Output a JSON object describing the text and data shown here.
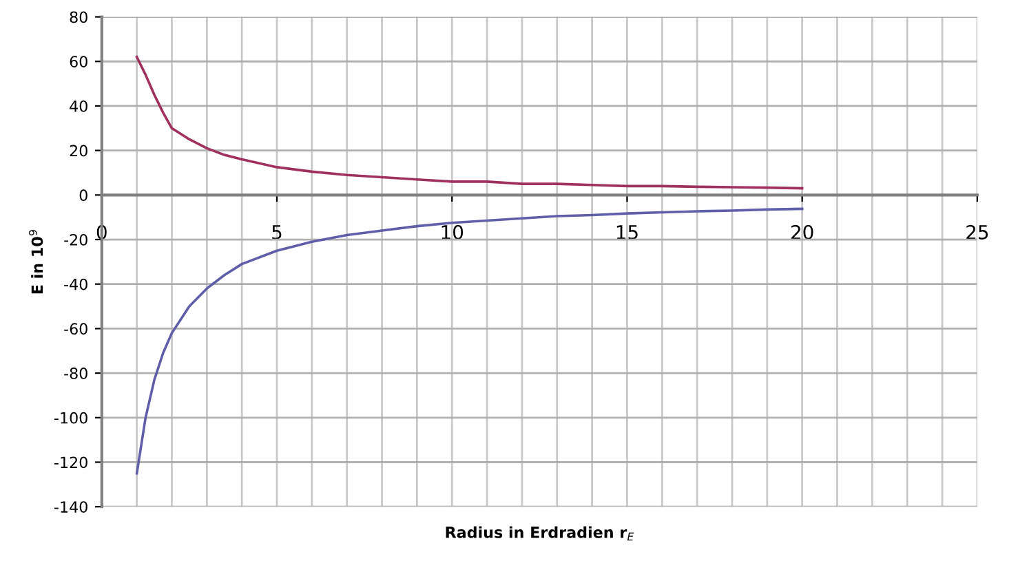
{
  "chart_data": {
    "type": "line",
    "xlabel": "Radius in Erdradien r$_{E}$",
    "ylabel": "E in 10$^{9}$",
    "x": [
      1,
      1.25,
      1.5,
      1.75,
      2,
      2.5,
      3,
      3.5,
      4,
      5,
      6,
      7,
      8,
      9,
      10,
      11,
      12,
      13,
      14,
      15,
      16,
      17,
      18,
      19,
      20
    ],
    "series": [
      {
        "color": "#a0305f",
        "values": [
          62,
          54,
          45,
          37,
          30,
          25,
          21,
          18,
          16,
          12.5,
          10.5,
          9,
          8,
          7,
          6,
          6,
          5,
          5,
          4.5,
          4,
          4,
          3.7,
          3.5,
          3.3,
          3
        ]
      },
      {
        "color": "#5f5ea8",
        "values": [
          -125,
          -100,
          -83,
          -71,
          -62,
          -50,
          -42,
          -36,
          -31,
          -25,
          -21,
          -18,
          -16,
          -14,
          -12.5,
          -11.5,
          -10.5,
          -9.5,
          -9,
          -8.3,
          -7.8,
          -7.3,
          -7,
          -6.5,
          -6.2
        ]
      }
    ],
    "xlim": [
      0,
      25
    ],
    "xticks": [
      0,
      5,
      10,
      15,
      20,
      25
    ],
    "ylim": [
      -140,
      80
    ],
    "yticks": [
      -140,
      -120,
      -100,
      -80,
      -60,
      -40,
      -20,
      0,
      20,
      40,
      60,
      80
    ],
    "grid": true,
    "marker": "none",
    "line_style": "solid"
  }
}
